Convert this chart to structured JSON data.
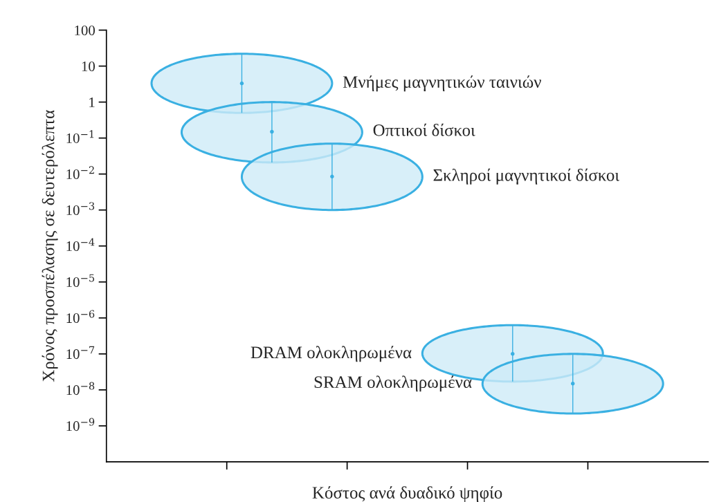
{
  "chart_data": {
    "type": "scatter",
    "xlabel": "Κόστος ανά δυαδικό ψηφίο",
    "ylabel": "Χρόνος προσπέλασης σε δευτερόλεπτα",
    "log": "y",
    "grid": false,
    "legend": false,
    "tick_labels": "y",
    "annotations": [
      "Μνήμες μαγνητικών ταινιών",
      "Οπτικοί δίσκοι",
      "Σκληροί μαγνητικοί δίσκοι",
      "DRAM ολοκληρωμένα",
      "SRAM ολοκληρωμένα"
    ],
    "categories": [
      null,
      null,
      null,
      null,
      null,
      null,
      null,
      null,
      null,
      null,
      null,
      null,
      null,
      null,
      null,
      null,
      null,
      null,
      null,
      null
    ],
    "ylim": [
      1e-10,
      100
    ],
    "yticks": [
      {
        "value": 1e-09,
        "label": "10$^{−9}$"
      },
      {
        "value": 1e-08,
        "label": "10$^{−8}$"
      },
      {
        "value": 1e-07,
        "label": "10$^{−7}$"
      },
      {
        "value": 1e-06,
        "label": "10$^{−6}$"
      },
      {
        "value": 1e-05,
        "label": "10$^{−5}$"
      },
      {
        "value": 0.0001,
        "label": "10$^{−4}$"
      },
      {
        "value": 0.001,
        "label": "10$^{−3}$"
      },
      {
        "value": 0.01,
        "label": "10$^{−2}$"
      },
      {
        "value": 0.1,
        "label": "10$^{−1}$"
      },
      1,
      10,
      100
    ],
    "series": [
      {
        "color": "#3ab0e2",
        "values": [
          null,
          null,
          null,
          null,
          3.3,
          null,
          null,
          null,
          null,
          null,
          null,
          null,
          null,
          null,
          null,
          null,
          null,
          null,
          null,
          null
        ],
        "errors": [
          null,
          null,
          null,
          null,
          [
            0.5,
            22
          ],
          null,
          null,
          null,
          null,
          null,
          null,
          null,
          null,
          null,
          null,
          null,
          null,
          null,
          null,
          null
        ]
      },
      {
        "color": "#3ab0e2",
        "values": [
          null,
          null,
          null,
          null,
          null,
          0.15,
          null,
          null,
          null,
          null,
          null,
          null,
          null,
          null,
          null,
          null,
          null,
          null,
          null,
          null
        ],
        "errors": [
          null,
          null,
          null,
          null,
          null,
          [
            0.021,
            1
          ],
          null,
          null,
          null,
          null,
          null,
          null,
          null,
          null,
          null,
          null,
          null,
          null,
          null,
          null
        ]
      },
      {
        "color": "#3ab0e2",
        "values": [
          null,
          null,
          null,
          null,
          null,
          null,
          null,
          0.0085,
          null,
          null,
          null,
          null,
          null,
          null,
          null,
          null,
          null,
          null,
          null,
          null
        ],
        "errors": [
          null,
          null,
          null,
          null,
          null,
          null,
          null,
          [
            0.001,
            0.07
          ],
          null,
          null,
          null,
          null,
          null,
          null,
          null,
          null,
          null,
          null,
          null,
          null
        ]
      },
      {
        "color": "#3ab0e2",
        "values": [
          null,
          null,
          null,
          null,
          null,
          null,
          null,
          null,
          null,
          null,
          null,
          null,
          null,
          1e-07,
          null,
          null,
          null,
          null,
          null,
          null
        ],
        "errors": [
          null,
          null,
          null,
          null,
          null,
          null,
          null,
          null,
          null,
          null,
          null,
          null,
          null,
          [
            1.7e-08,
            6.3e-07
          ],
          null,
          null,
          null,
          null,
          null,
          null
        ]
      },
      {
        "color": "#3ab0e2",
        "values": [
          null,
          null,
          null,
          null,
          null,
          null,
          null,
          null,
          null,
          null,
          null,
          null,
          null,
          null,
          null,
          1.5e-08,
          null,
          null,
          null,
          null
        ],
        "errors": [
          null,
          null,
          null,
          null,
          null,
          null,
          null,
          null,
          null,
          null,
          null,
          null,
          null,
          null,
          null,
          [
            2.2e-09,
            1e-07
          ],
          null,
          null,
          null,
          null
        ]
      }
    ]
  }
}
